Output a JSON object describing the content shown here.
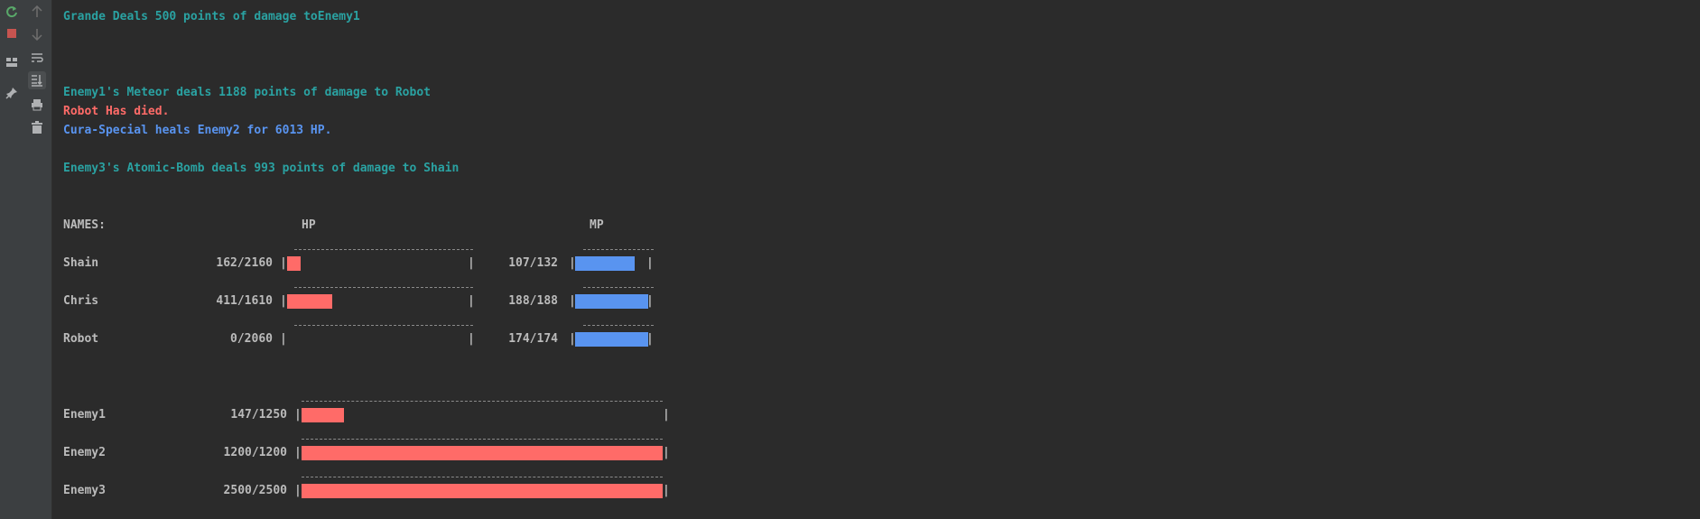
{
  "log": {
    "line1": "Grande Deals 500 points of damage toEnemy1",
    "line2": "Enemy1's Meteor deals 1188 points of damage to Robot",
    "line3": "Robot Has died.",
    "line4": "Cura-Special heals Enemy2 for 6013 HP.",
    "line5": "Enemy3's Atomic-Bomb deals 993 points of damage to Shain"
  },
  "table": {
    "names_header": "NAMES:",
    "hp_header": "HP",
    "mp_header": "MP"
  },
  "party": [
    {
      "name": "Shain",
      "hp_text": "162/2160",
      "hp": 162,
      "hp_max": 2160,
      "mp_text": "107/132",
      "mp": 107,
      "mp_max": 132
    },
    {
      "name": "Chris",
      "hp_text": "411/1610",
      "hp": 411,
      "hp_max": 1610,
      "mp_text": "188/188",
      "mp": 188,
      "mp_max": 188
    },
    {
      "name": "Robot",
      "hp_text": "0/2060",
      "hp": 0,
      "hp_max": 2060,
      "mp_text": "174/174",
      "mp": 174,
      "mp_max": 174
    }
  ],
  "enemies": [
    {
      "name": "Enemy1",
      "hp_text": "147/1250",
      "hp": 147,
      "hp_max": 1250
    },
    {
      "name": "Enemy2",
      "hp_text": "1200/1200",
      "hp": 1200,
      "hp_max": 1200
    },
    {
      "name": "Enemy3",
      "hp_text": "2500/2500",
      "hp": 2500,
      "hp_max": 2500
    }
  ],
  "colors": {
    "background": "#2b2b2b",
    "log_teal": "#2aa2a2",
    "death_red": "#ff6b68",
    "heal_blue": "#5994f0",
    "hp_bar": "#ff6b68",
    "mp_bar": "#5994f0"
  },
  "toolbar": {
    "left": [
      "rerun-icon",
      "stop-icon",
      "layout-icon",
      "pin-icon"
    ],
    "right": [
      "up-arrow-icon",
      "down-arrow-icon",
      "soft-wrap-icon",
      "scroll-to-end-icon",
      "print-icon",
      "trash-icon"
    ]
  }
}
